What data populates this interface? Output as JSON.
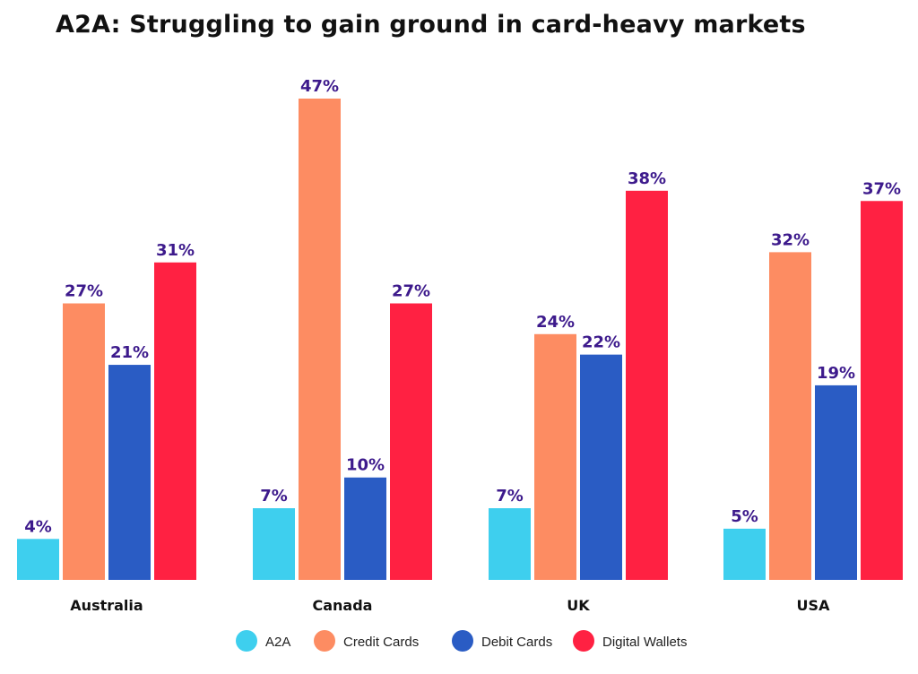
{
  "chart_data": {
    "type": "bar",
    "title": "A2A: Struggling to gain ground in card-heavy markets",
    "xlabel": "",
    "ylabel": "",
    "categories": [
      "Australia",
      "Canada",
      "UK",
      "USA"
    ],
    "series": [
      {
        "name": "A2A",
        "color": "#3ecfee",
        "values": [
          4,
          7,
          7,
          5
        ]
      },
      {
        "name": "Credit Cards",
        "color": "#fd8c62",
        "values": [
          27,
          47,
          24,
          32
        ]
      },
      {
        "name": "Debit Cards",
        "color": "#2a5cc4",
        "values": [
          21,
          10,
          22,
          19
        ]
      },
      {
        "name": "Digital Wallets",
        "color": "#ff2142",
        "values": [
          31,
          27,
          38,
          37
        ]
      }
    ],
    "value_suffix": "%",
    "ylim": [
      0,
      47
    ],
    "grid": false,
    "legend": "bottom-center",
    "label_color": "#3d1a8c"
  }
}
